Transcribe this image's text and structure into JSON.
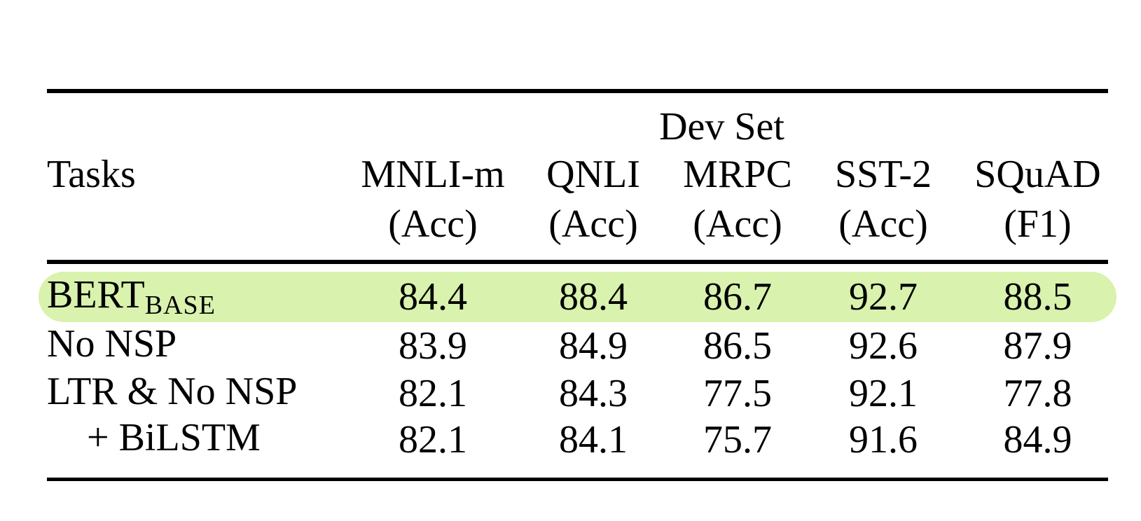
{
  "table": {
    "group_header": "Dev Set",
    "columns": [
      {
        "label": "Tasks",
        "sub": ""
      },
      {
        "label": "MNLI-m",
        "sub": "(Acc)"
      },
      {
        "label": "QNLI",
        "sub": "(Acc)"
      },
      {
        "label": "MRPC",
        "sub": "(Acc)"
      },
      {
        "label": "SST-2",
        "sub": "(Acc)"
      },
      {
        "label": "SQuAD",
        "sub": "(F1)"
      }
    ],
    "rows": [
      {
        "task": "BERT",
        "task_subscript": "BASE",
        "highlighted": true,
        "values": [
          "84.4",
          "88.4",
          "86.7",
          "92.7",
          "88.5"
        ]
      },
      {
        "task": "No NSP",
        "task_subscript": "",
        "highlighted": false,
        "values": [
          "83.9",
          "84.9",
          "86.5",
          "92.6",
          "87.9"
        ]
      },
      {
        "task": "LTR & No NSP",
        "task_subscript": "",
        "highlighted": false,
        "values": [
          "82.1",
          "84.3",
          "77.5",
          "92.1",
          "77.8"
        ]
      },
      {
        "task": "+ BiLSTM",
        "task_subscript": "",
        "highlighted": false,
        "values": [
          "82.1",
          "84.1",
          "75.7",
          "91.6",
          "84.9"
        ]
      }
    ],
    "highlight_color": "#d9f2ad",
    "rule_color": "#000000",
    "text_color": "#000000"
  },
  "chart_data": {
    "type": "table",
    "title": "Dev Set",
    "categories": [
      "MNLI-m (Acc)",
      "QNLI (Acc)",
      "MRPC (Acc)",
      "SST-2 (Acc)",
      "SQuAD (F1)"
    ],
    "series": [
      {
        "name": "BERTBASE",
        "values": [
          84.4,
          88.4,
          86.7,
          92.7,
          88.5
        ]
      },
      {
        "name": "No NSP",
        "values": [
          83.9,
          84.9,
          86.5,
          92.6,
          87.9
        ]
      },
      {
        "name": "LTR & No NSP",
        "values": [
          82.1,
          84.3,
          77.5,
          92.1,
          77.8
        ]
      },
      {
        "name": "+ BiLSTM",
        "values": [
          82.1,
          84.1,
          75.7,
          91.6,
          84.9
        ]
      }
    ]
  }
}
